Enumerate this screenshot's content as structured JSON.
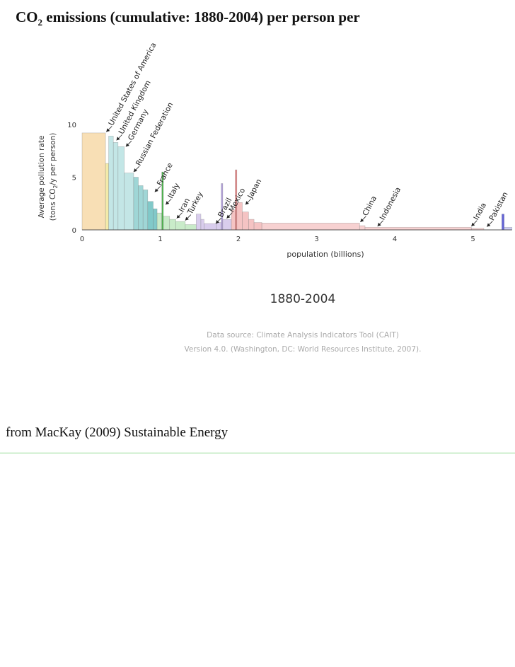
{
  "slide": {
    "title_pre": "CO",
    "title_sub": "2",
    "title_post": " emissions (cumulative: 1880-2004) per person per",
    "credit": "from MacKay (2009) Sustainable Energy",
    "rule_color": "#8fd98f"
  },
  "chart_data": {
    "type": "bar",
    "title": "1880-2004",
    "xlabel": "population (billions)",
    "ylabel_line1": "Average pollution rate",
    "ylabel_line2_pre": "(tons CO",
    "ylabel_line2_sub": "2",
    "ylabel_line2_post": "/y per person)",
    "xlim": [
      0,
      5.5
    ],
    "ylim": [
      0,
      10
    ],
    "x_ticks": [
      0,
      1,
      2,
      3,
      4,
      5
    ],
    "x_tick_labels": [
      "0",
      "1",
      "2",
      "3",
      "4",
      "5"
    ],
    "y_ticks": [
      0,
      5,
      10
    ],
    "y_tick_labels": [
      "0",
      "5",
      "10"
    ],
    "source_line1": "Data source: Climate Analysis Indicators Tool (CAIT)",
    "source_line2": "Version 4.0. (Washington, DC: World Resources Institute, 2007).",
    "bars": [
      {
        "x0": 0.0,
        "x1": 0.3,
        "value": 9.2,
        "color": "#f7d9a8"
      },
      {
        "x0": 0.3,
        "x1": 0.34,
        "value": 6.3,
        "color": "#f2e79a"
      },
      {
        "x0": 0.34,
        "x1": 0.4,
        "value": 8.9,
        "color": "#b8e2e2"
      },
      {
        "x0": 0.4,
        "x1": 0.46,
        "value": 8.3,
        "color": "#b8e2e2"
      },
      {
        "x0": 0.46,
        "x1": 0.54,
        "value": 7.9,
        "color": "#b8e2e2"
      },
      {
        "x0": 0.54,
        "x1": 0.66,
        "value": 5.4,
        "color": "#b8e2e2"
      },
      {
        "x0": 0.66,
        "x1": 0.72,
        "value": 5.0,
        "color": "#8ecfcf"
      },
      {
        "x0": 0.72,
        "x1": 0.78,
        "value": 4.2,
        "color": "#8ecfcf"
      },
      {
        "x0": 0.78,
        "x1": 0.84,
        "value": 3.8,
        "color": "#8ecfcf"
      },
      {
        "x0": 0.84,
        "x1": 0.91,
        "value": 2.7,
        "color": "#6bbfbf"
      },
      {
        "x0": 0.91,
        "x1": 0.96,
        "value": 2.0,
        "color": "#6bbfbf"
      },
      {
        "x0": 0.96,
        "x1": 1.02,
        "value": 1.6,
        "color": "#bfe8bf"
      },
      {
        "x0": 1.02,
        "x1": 1.04,
        "value": 5.5,
        "color": "#2fa52f"
      },
      {
        "x0": 1.04,
        "x1": 1.12,
        "value": 1.3,
        "color": "#bfe8bf"
      },
      {
        "x0": 1.12,
        "x1": 1.2,
        "value": 1.0,
        "color": "#bfe8bf"
      },
      {
        "x0": 1.2,
        "x1": 1.32,
        "value": 0.8,
        "color": "#bfe8bf"
      },
      {
        "x0": 1.32,
        "x1": 1.46,
        "value": 0.5,
        "color": "#bfe8bf"
      },
      {
        "x0": 1.46,
        "x1": 1.52,
        "value": 1.5,
        "color": "#d2c4ea"
      },
      {
        "x0": 1.52,
        "x1": 1.56,
        "value": 1.0,
        "color": "#d2c4ea"
      },
      {
        "x0": 1.56,
        "x1": 1.72,
        "value": 0.6,
        "color": "#d2c4ea"
      },
      {
        "x0": 1.72,
        "x1": 1.78,
        "value": 0.7,
        "color": "#d2c4ea"
      },
      {
        "x0": 1.78,
        "x1": 1.8,
        "value": 4.4,
        "color": "#a58fd6"
      },
      {
        "x0": 1.8,
        "x1": 1.91,
        "value": 1.0,
        "color": "#d2c4ea"
      },
      {
        "x0": 1.91,
        "x1": 1.96,
        "value": 1.9,
        "color": "#f3b9b9"
      },
      {
        "x0": 1.96,
        "x1": 1.98,
        "value": 5.7,
        "color": "#e06a6a"
      },
      {
        "x0": 1.98,
        "x1": 2.05,
        "value": 2.6,
        "color": "#f3b9b9"
      },
      {
        "x0": 2.05,
        "x1": 2.13,
        "value": 1.7,
        "color": "#f3b9b9"
      },
      {
        "x0": 2.13,
        "x1": 2.2,
        "value": 1.0,
        "color": "#f3b9b9"
      },
      {
        "x0": 2.2,
        "x1": 2.3,
        "value": 0.7,
        "color": "#f3b9b9"
      },
      {
        "x0": 2.3,
        "x1": 3.55,
        "value": 0.65,
        "color": "#f6c9c9"
      },
      {
        "x0": 3.55,
        "x1": 3.62,
        "value": 0.4,
        "color": "#f6c9c9"
      },
      {
        "x0": 3.62,
        "x1": 4.98,
        "value": 0.25,
        "color": "#f6c9c9"
      },
      {
        "x0": 4.98,
        "x1": 5.14,
        "value": 0.15,
        "color": "#f6c9c9"
      },
      {
        "x0": 5.37,
        "x1": 5.4,
        "value": 1.5,
        "color": "#4a4ad0"
      },
      {
        "x0": 5.4,
        "x1": 5.5,
        "value": 0.25,
        "color": "#c4c4f0"
      }
    ],
    "country_labels": [
      {
        "name": "United States of America",
        "x": 0.31,
        "y": 9.3
      },
      {
        "name": "United Kingdom",
        "x": 0.44,
        "y": 8.5
      },
      {
        "name": "Germany",
        "x": 0.56,
        "y": 7.9
      },
      {
        "name": "Russian Federation",
        "x": 0.66,
        "y": 5.5
      },
      {
        "name": "France",
        "x": 0.93,
        "y": 3.6
      },
      {
        "name": "Italy",
        "x": 1.07,
        "y": 2.4
      },
      {
        "name": "Iran",
        "x": 1.21,
        "y": 1.1
      },
      {
        "name": "Turkey",
        "x": 1.32,
        "y": 0.9
      },
      {
        "name": "Brazil",
        "x": 1.71,
        "y": 0.6
      },
      {
        "name": "Mexico",
        "x": 1.85,
        "y": 1.1
      },
      {
        "name": "Japan",
        "x": 2.09,
        "y": 2.4
      },
      {
        "name": "China",
        "x": 3.56,
        "y": 0.75
      },
      {
        "name": "Indonesia",
        "x": 3.78,
        "y": 0.35
      },
      {
        "name": "India",
        "x": 4.98,
        "y": 0.35
      },
      {
        "name": "Pakistan",
        "x": 5.18,
        "y": 0.3
      }
    ]
  }
}
